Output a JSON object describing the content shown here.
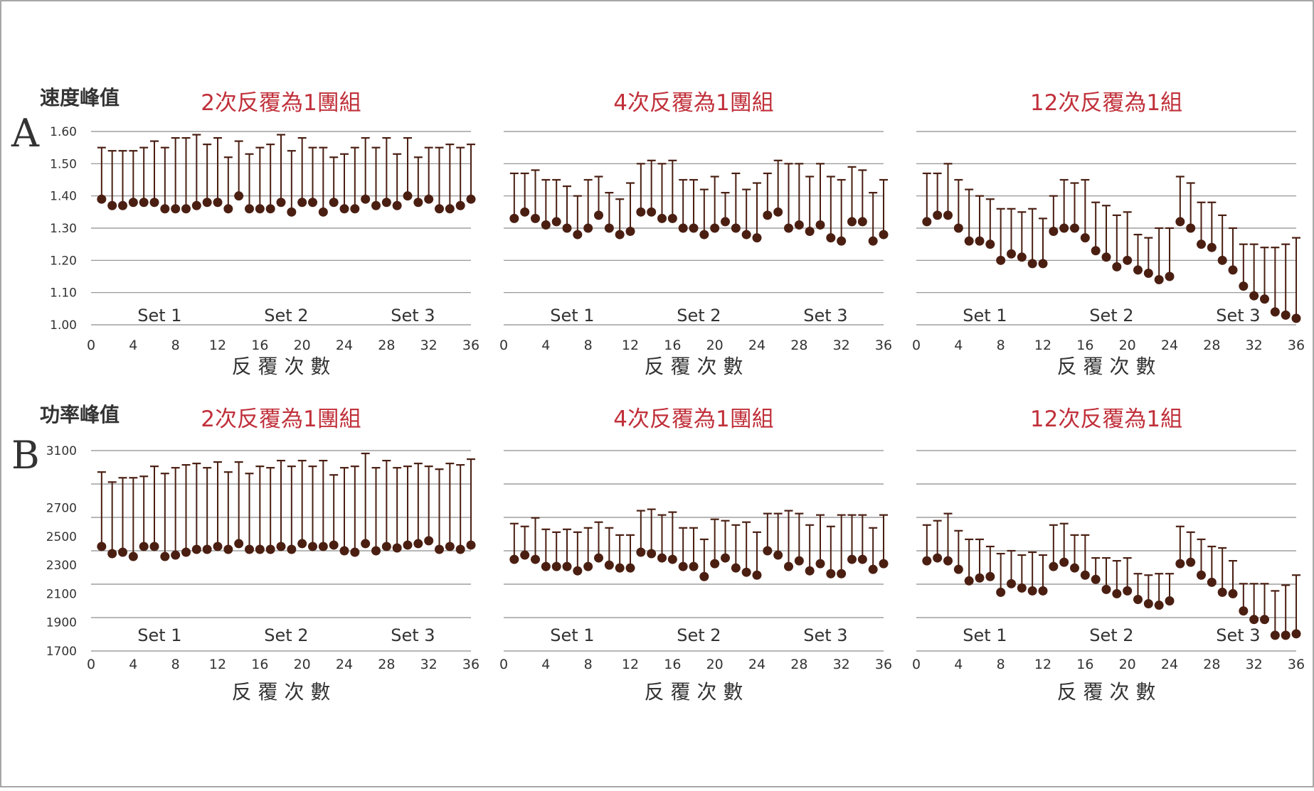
{
  "figure": {
    "rows": [
      {
        "letter": "A",
        "metric": "速度峰值"
      },
      {
        "letter": "B",
        "metric": "功率峰值"
      }
    ]
  },
  "colors": {
    "marker": "#4a1f12",
    "title": "#c0303a",
    "grid": "#8c8c8c",
    "text": "#333333"
  },
  "chart_data": [
    {
      "type": "scatter",
      "row": 0,
      "col": 0,
      "title": "2次反覆為1團組",
      "xlabel": "反 覆 次 數",
      "ylabel": "速度峰值",
      "xlim": [
        0,
        36
      ],
      "xticks": [
        "0",
        "4",
        "8",
        "12",
        "16",
        "20",
        "24",
        "28",
        "32",
        "36"
      ],
      "ylim": [
        1.0,
        1.6
      ],
      "yticks": [
        "1.00",
        "1.10",
        "1.20",
        "1.30",
        "1.40",
        "1.50",
        "1.60"
      ],
      "set_labels": [
        "Set 1",
        "Set 2",
        "Set 3"
      ],
      "grid": true,
      "x": [
        1,
        2,
        3,
        4,
        5,
        6,
        7,
        8,
        9,
        10,
        11,
        12,
        13,
        14,
        15,
        16,
        17,
        18,
        19,
        20,
        21,
        22,
        23,
        24,
        25,
        26,
        27,
        28,
        29,
        30,
        31,
        32,
        33,
        34,
        35,
        36
      ],
      "mean": [
        1.39,
        1.37,
        1.37,
        1.38,
        1.38,
        1.38,
        1.36,
        1.36,
        1.36,
        1.37,
        1.38,
        1.38,
        1.36,
        1.4,
        1.36,
        1.36,
        1.36,
        1.38,
        1.35,
        1.38,
        1.38,
        1.35,
        1.38,
        1.36,
        1.36,
        1.39,
        1.37,
        1.38,
        1.37,
        1.4,
        1.38,
        1.39,
        1.36,
        1.36,
        1.37,
        1.39
      ],
      "upper": [
        1.55,
        1.54,
        1.54,
        1.54,
        1.55,
        1.57,
        1.55,
        1.58,
        1.58,
        1.59,
        1.56,
        1.58,
        1.52,
        1.57,
        1.53,
        1.55,
        1.56,
        1.59,
        1.54,
        1.58,
        1.55,
        1.55,
        1.52,
        1.53,
        1.55,
        1.58,
        1.55,
        1.58,
        1.53,
        1.58,
        1.52,
        1.55,
        1.55,
        1.56,
        1.55,
        1.56
      ]
    },
    {
      "type": "scatter",
      "row": 0,
      "col": 1,
      "title": "4次反覆為1團組",
      "xlabel": "反 覆 次 數",
      "xlim": [
        0,
        36
      ],
      "xticks": [
        "0",
        "4",
        "8",
        "12",
        "16",
        "20",
        "24",
        "28",
        "32",
        "36"
      ],
      "ylim": [
        1.0,
        1.6
      ],
      "yticks": [],
      "set_labels": [
        "Set 1",
        "Set 2",
        "Set 3"
      ],
      "grid": true,
      "x": [
        1,
        2,
        3,
        4,
        5,
        6,
        7,
        8,
        9,
        10,
        11,
        12,
        13,
        14,
        15,
        16,
        17,
        18,
        19,
        20,
        21,
        22,
        23,
        24,
        25,
        26,
        27,
        28,
        29,
        30,
        31,
        32,
        33,
        34,
        35,
        36
      ],
      "mean": [
        1.33,
        1.35,
        1.33,
        1.31,
        1.32,
        1.3,
        1.28,
        1.3,
        1.34,
        1.3,
        1.28,
        1.29,
        1.35,
        1.35,
        1.33,
        1.33,
        1.3,
        1.3,
        1.28,
        1.3,
        1.32,
        1.3,
        1.28,
        1.27,
        1.34,
        1.35,
        1.3,
        1.31,
        1.29,
        1.31,
        1.27,
        1.26,
        1.32,
        1.32,
        1.26,
        1.28
      ],
      "upper": [
        1.47,
        1.47,
        1.48,
        1.45,
        1.45,
        1.43,
        1.4,
        1.45,
        1.46,
        1.41,
        1.39,
        1.44,
        1.5,
        1.51,
        1.5,
        1.51,
        1.45,
        1.45,
        1.42,
        1.46,
        1.41,
        1.47,
        1.42,
        1.44,
        1.47,
        1.51,
        1.5,
        1.5,
        1.46,
        1.5,
        1.46,
        1.45,
        1.49,
        1.48,
        1.41,
        1.45
      ]
    },
    {
      "type": "scatter",
      "row": 0,
      "col": 2,
      "title": "12次反覆為1組",
      "xlabel": "反 覆 次 數",
      "xlim": [
        0,
        36
      ],
      "xticks": [
        "0",
        "4",
        "8",
        "12",
        "16",
        "20",
        "24",
        "28",
        "32",
        "36"
      ],
      "ylim": [
        1.0,
        1.6
      ],
      "yticks": [],
      "set_labels": [
        "Set 1",
        "Set 2",
        "Set 3"
      ],
      "grid": true,
      "x": [
        1,
        2,
        3,
        4,
        5,
        6,
        7,
        8,
        9,
        10,
        11,
        12,
        13,
        14,
        15,
        16,
        17,
        18,
        19,
        20,
        21,
        22,
        23,
        24,
        25,
        26,
        27,
        28,
        29,
        30,
        31,
        32,
        33,
        34,
        35,
        36
      ],
      "mean": [
        1.32,
        1.34,
        1.34,
        1.3,
        1.26,
        1.26,
        1.25,
        1.2,
        1.22,
        1.21,
        1.19,
        1.19,
        1.29,
        1.3,
        1.3,
        1.27,
        1.23,
        1.21,
        1.18,
        1.2,
        1.17,
        1.16,
        1.14,
        1.15,
        1.32,
        1.3,
        1.25,
        1.24,
        1.2,
        1.17,
        1.12,
        1.09,
        1.08,
        1.04,
        1.03,
        1.02
      ],
      "upper": [
        1.47,
        1.47,
        1.5,
        1.45,
        1.42,
        1.4,
        1.39,
        1.36,
        1.36,
        1.35,
        1.36,
        1.33,
        1.4,
        1.45,
        1.44,
        1.45,
        1.38,
        1.37,
        1.34,
        1.35,
        1.28,
        1.27,
        1.3,
        1.3,
        1.46,
        1.44,
        1.38,
        1.38,
        1.34,
        1.3,
        1.25,
        1.25,
        1.24,
        1.24,
        1.25,
        1.27
      ]
    },
    {
      "type": "scatter",
      "row": 1,
      "col": 0,
      "title": "2次反覆為1團組",
      "xlabel": "反 覆 次 數",
      "ylabel": "功率峰值",
      "xlim": [
        0,
        36
      ],
      "xticks": [
        "0",
        "4",
        "8",
        "12",
        "16",
        "20",
        "24",
        "28",
        "32",
        "36"
      ],
      "ylim": [
        1700,
        3100
      ],
      "yticks": [
        "1700",
        "1900",
        "2100",
        "2300",
        "2500",
        "2700",
        "3100"
      ],
      "set_labels": [
        "Set 1",
        "Set 2",
        "Set 3"
      ],
      "grid": true,
      "x": [
        1,
        2,
        3,
        4,
        5,
        6,
        7,
        8,
        9,
        10,
        11,
        12,
        13,
        14,
        15,
        16,
        17,
        18,
        19,
        20,
        21,
        22,
        23,
        24,
        25,
        26,
        27,
        28,
        29,
        30,
        31,
        32,
        33,
        34,
        35,
        36
      ],
      "mean": [
        2430,
        2380,
        2390,
        2360,
        2430,
        2430,
        2360,
        2370,
        2390,
        2410,
        2410,
        2430,
        2410,
        2450,
        2410,
        2410,
        2410,
        2430,
        2410,
        2450,
        2430,
        2430,
        2440,
        2400,
        2390,
        2450,
        2400,
        2430,
        2420,
        2440,
        2450,
        2470,
        2410,
        2430,
        2410,
        2440
      ],
      "upper": [
        2950,
        2880,
        2910,
        2910,
        2920,
        2990,
        2940,
        2980,
        3000,
        3010,
        2980,
        3020,
        2950,
        3020,
        2940,
        2990,
        2980,
        3030,
        2990,
        3030,
        2990,
        3030,
        2930,
        2980,
        2990,
        3080,
        2980,
        3030,
        2980,
        2990,
        3010,
        2990,
        2970,
        3010,
        3000,
        3040
      ]
    },
    {
      "type": "scatter",
      "row": 1,
      "col": 1,
      "title": "4次反覆為1團組",
      "xlabel": "反 覆 次 數",
      "xlim": [
        0,
        36
      ],
      "xticks": [
        "0",
        "4",
        "8",
        "12",
        "16",
        "20",
        "24",
        "28",
        "32",
        "36"
      ],
      "ylim": [
        1700,
        3100
      ],
      "yticks": [],
      "set_labels": [
        "Set 1",
        "Set 2",
        "Set 3"
      ],
      "grid": true,
      "x": [
        1,
        2,
        3,
        4,
        5,
        6,
        7,
        8,
        9,
        10,
        11,
        12,
        13,
        14,
        15,
        16,
        17,
        18,
        19,
        20,
        21,
        22,
        23,
        24,
        25,
        26,
        27,
        28,
        29,
        30,
        31,
        32,
        33,
        34,
        35,
        36
      ],
      "mean": [
        2340,
        2370,
        2340,
        2290,
        2290,
        2290,
        2260,
        2290,
        2350,
        2300,
        2280,
        2280,
        2390,
        2380,
        2350,
        2340,
        2290,
        2290,
        2220,
        2310,
        2350,
        2280,
        2250,
        2230,
        2400,
        2370,
        2290,
        2330,
        2260,
        2310,
        2240,
        2240,
        2340,
        2340,
        2270,
        2310
      ],
      "upper": [
        2590,
        2570,
        2630,
        2550,
        2530,
        2550,
        2530,
        2560,
        2600,
        2560,
        2510,
        2510,
        2680,
        2690,
        2650,
        2670,
        2560,
        2560,
        2480,
        2620,
        2610,
        2580,
        2600,
        2530,
        2660,
        2660,
        2680,
        2660,
        2580,
        2650,
        2570,
        2650,
        2650,
        2650,
        2560,
        2650
      ]
    },
    {
      "type": "scatter",
      "row": 1,
      "col": 2,
      "title": "12次反覆為1組",
      "xlabel": "反 覆 次 數",
      "xlim": [
        0,
        36
      ],
      "xticks": [
        "0",
        "4",
        "8",
        "12",
        "16",
        "20",
        "24",
        "28",
        "32",
        "36"
      ],
      "ylim": [
        1700,
        3100
      ],
      "yticks": [],
      "set_labels": [
        "Set 1",
        "Set 2",
        "Set 3"
      ],
      "grid": true,
      "x": [
        1,
        2,
        3,
        4,
        5,
        6,
        7,
        8,
        9,
        10,
        11,
        12,
        13,
        14,
        15,
        16,
        17,
        18,
        19,
        20,
        21,
        22,
        23,
        24,
        25,
        26,
        27,
        28,
        29,
        30,
        31,
        32,
        33,
        34,
        35,
        36
      ],
      "mean": [
        2330,
        2350,
        2330,
        2270,
        2190,
        2210,
        2220,
        2110,
        2170,
        2140,
        2120,
        2120,
        2290,
        2320,
        2280,
        2230,
        2200,
        2130,
        2100,
        2120,
        2060,
        2030,
        2020,
        2050,
        2310,
        2320,
        2230,
        2180,
        2110,
        2100,
        1980,
        1920,
        1920,
        1810,
        1810,
        1820
      ],
      "upper": [
        2580,
        2610,
        2660,
        2540,
        2480,
        2480,
        2430,
        2380,
        2400,
        2370,
        2390,
        2370,
        2580,
        2590,
        2510,
        2510,
        2350,
        2350,
        2330,
        2350,
        2240,
        2230,
        2240,
        2240,
        2570,
        2530,
        2480,
        2430,
        2420,
        2330,
        2170,
        2170,
        2170,
        2120,
        2160,
        2230
      ]
    }
  ]
}
